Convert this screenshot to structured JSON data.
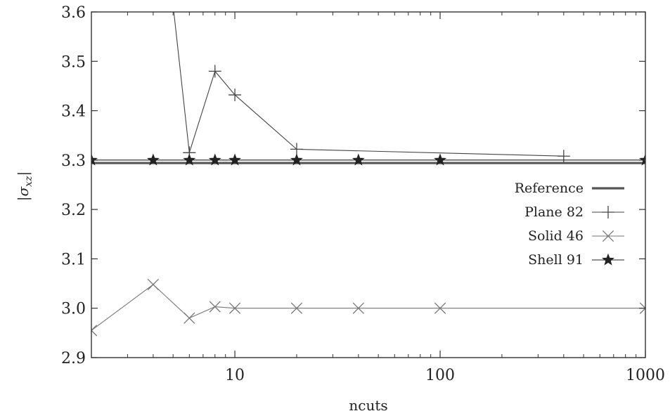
{
  "chart_data": {
    "type": "line",
    "title": "",
    "xlabel": "ncuts",
    "ylabel": "|σ",
    "ylabel_subscript": "xz",
    "ylabel_close": "|",
    "xscale": "log",
    "xlim": [
      2,
      1000
    ],
    "ylim": [
      2.9,
      3.6
    ],
    "xticks": [
      10,
      100,
      1000
    ],
    "xtick_labels": [
      "10",
      "100",
      "1000"
    ],
    "yticks": [
      2.9,
      3.0,
      3.1,
      3.2,
      3.3,
      3.4,
      3.5,
      3.6
    ],
    "ytick_labels": [
      "2.9",
      "3.0",
      "3.1",
      "3.2",
      "3.3",
      "3.4",
      "3.5",
      "3.6"
    ],
    "grid": false,
    "legend_position": "center-right",
    "series": [
      {
        "name": "Reference",
        "marker": "none",
        "style": "thick",
        "color": "#555555",
        "x": [
          2,
          1000
        ],
        "y": [
          3.294,
          3.294
        ]
      },
      {
        "name": "Plane 82",
        "marker": "plus",
        "style": "thin",
        "color": "#444444",
        "x": [
          4,
          6,
          8,
          10,
          20,
          400
        ],
        "y": [
          3.98,
          3.315,
          3.48,
          3.432,
          3.322,
          3.308
        ]
      },
      {
        "name": "Solid 46",
        "marker": "cross",
        "style": "thin",
        "color": "#777777",
        "x": [
          2,
          4,
          6,
          8,
          10,
          20,
          40,
          100,
          1000
        ],
        "y": [
          2.955,
          3.048,
          2.98,
          3.003,
          3.0,
          3.0,
          3.0,
          3.0,
          3.0
        ]
      },
      {
        "name": "Shell 91",
        "marker": "star",
        "style": "thin",
        "color": "#222222",
        "x": [
          2,
          4,
          6,
          8,
          10,
          20,
          40,
          100,
          1000
        ],
        "y": [
          3.3,
          3.3,
          3.3,
          3.3,
          3.3,
          3.3,
          3.3,
          3.3,
          3.3
        ]
      }
    ]
  }
}
